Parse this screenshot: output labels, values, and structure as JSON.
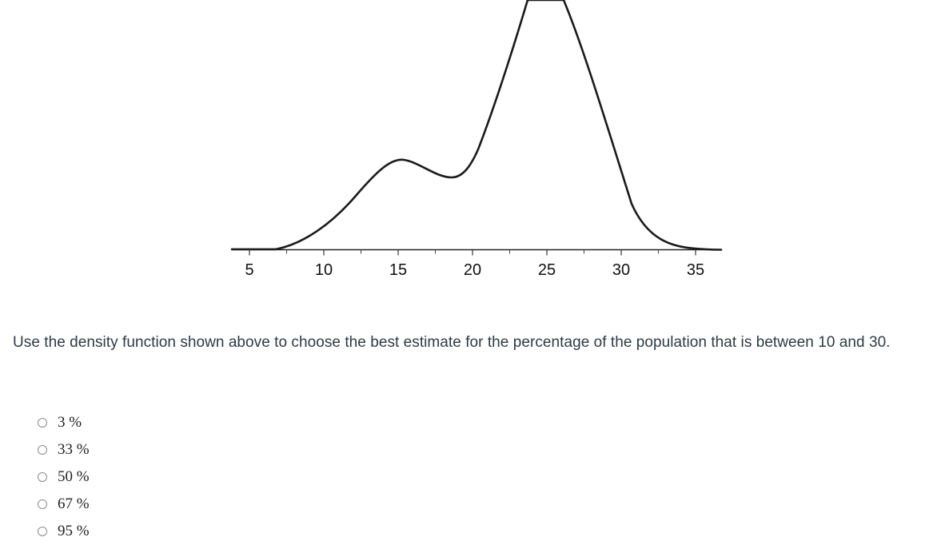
{
  "chart_data": {
    "type": "line",
    "title": "",
    "xlabel": "",
    "ylabel": "",
    "xlim": [
      0,
      38
    ],
    "ylim": [
      0,
      1.1
    ],
    "x_ticks": [
      5,
      10,
      15,
      20,
      25,
      30,
      35
    ],
    "tick_labels": [
      "5",
      "10",
      "15",
      "20",
      "25",
      "30",
      "35"
    ],
    "grid": false,
    "series": [
      {
        "x": [
          0,
          3,
          5,
          6,
          7,
          8,
          9,
          10,
          11,
          12,
          13,
          14,
          15,
          16,
          17,
          18,
          18.5,
          19,
          20,
          21,
          22,
          23,
          24,
          25,
          26,
          27,
          28,
          29,
          30,
          31,
          32,
          33,
          34,
          35,
          36,
          38
        ],
        "y": [
          0,
          0,
          0,
          0.003,
          0.02,
          0.05,
          0.095,
          0.15,
          0.215,
          0.285,
          0.35,
          0.395,
          0.415,
          0.405,
          0.375,
          0.35,
          0.348,
          0.355,
          0.43,
          0.6,
          0.79,
          0.97,
          1.12,
          1.2,
          1.12,
          0.9,
          0.66,
          0.43,
          0.25,
          0.13,
          0.06,
          0.025,
          0.01,
          0.004,
          0.002,
          0
        ]
      }
    ]
  },
  "question": {
    "text": "Use the density function shown above to choose the best estimate for the percentage of the population that is between 10 and 30."
  },
  "answers": [
    {
      "label": "3 %"
    },
    {
      "label": "33 %"
    },
    {
      "label": "50 %"
    },
    {
      "label": "67 %"
    },
    {
      "label": "95 %"
    }
  ]
}
